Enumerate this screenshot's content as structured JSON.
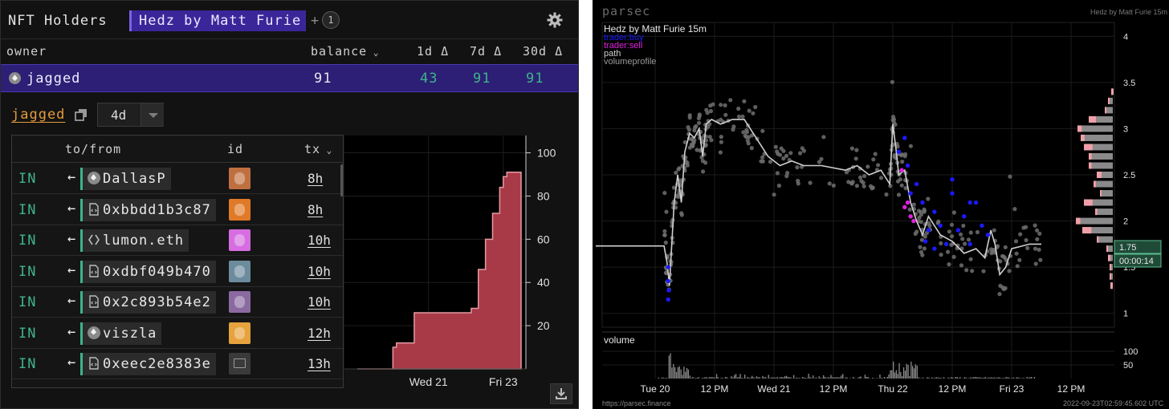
{
  "left": {
    "header": {
      "title": "NFT Holders",
      "collection": "Hedz by Matt Furie",
      "plus": "+",
      "count": "1"
    },
    "columns": {
      "owner": "owner",
      "balance": "balance",
      "d1": "1d Δ",
      "d7": "7d Δ",
      "d30": "30d Δ"
    },
    "selected_owner": {
      "name": "jagged",
      "balance": "91",
      "d1": "43",
      "d7": "91",
      "d30": "91"
    },
    "wallet_link": "jagged",
    "period": "4d",
    "tx_columns": {
      "dir": "to/from",
      "id": "id",
      "tx": "tx"
    },
    "tx_rows": [
      {
        "dir": "IN",
        "party": "DallasP",
        "kind": "eth",
        "time": "8h",
        "thumb": "#c07040"
      },
      {
        "dir": "IN",
        "party": "0xbbdd1b3c87",
        "kind": "contract",
        "time": "8h",
        "thumb": "#e07a28"
      },
      {
        "dir": "IN",
        "party": "lumon.eth",
        "kind": "ens",
        "time": "10h",
        "thumb": "#d66de0"
      },
      {
        "dir": "IN",
        "party": "0xdbf049b470",
        "kind": "contract",
        "time": "10h",
        "thumb": "#6c8c9e"
      },
      {
        "dir": "IN",
        "party": "0x2c893b54e2",
        "kind": "contract",
        "time": "10h",
        "thumb": "#8a6aa0"
      },
      {
        "dir": "IN",
        "party": "viszla",
        "kind": "eth",
        "time": "12h",
        "thumb": "#e6a23c"
      },
      {
        "dir": "IN",
        "party": "0xeec2e8383e",
        "kind": "contract",
        "time": "13h",
        "thumb": "#3a3a3a"
      }
    ],
    "colors": {
      "accent": "#3b2699",
      "in": "#3fb38a",
      "link": "#e49a3c",
      "area": "#a83a48"
    },
    "chart_data": {
      "type": "area",
      "x_labels": [
        "Wed 21",
        "Fri 23"
      ],
      "y_ticks": [
        20,
        40,
        60,
        80,
        100
      ],
      "ylim": [
        0,
        108
      ],
      "series": [
        {
          "values": [
            [
              0,
              0
            ],
            [
              0.5,
              10
            ],
            [
              0.55,
              12
            ],
            [
              0.75,
              12
            ],
            [
              0.8,
              26
            ],
            [
              1.55,
              26
            ],
            [
              1.6,
              28
            ],
            [
              1.7,
              46
            ],
            [
              1.8,
              60
            ],
            [
              1.9,
              72
            ],
            [
              2.0,
              84
            ],
            [
              2.05,
              89
            ],
            [
              2.1,
              91
            ],
            [
              2.3,
              91
            ]
          ]
        }
      ]
    }
  },
  "right": {
    "logo": "parsec",
    "collection_tag": "Hedz by Matt Furie 15m",
    "legend": {
      "title": "Hedz by Matt Furie 15m",
      "buy": "trader:buy",
      "sell": "trader:sell",
      "path": "path",
      "vp": "volumeprofile"
    },
    "price_ticks": [
      "4",
      "3.5",
      "3",
      "2.5",
      "2",
      "1.5",
      "1"
    ],
    "price_tag": "1.75",
    "timer_tag": "00:00:14",
    "x_labels": [
      "Tue 20",
      "12 PM",
      "Wed 21",
      "12 PM",
      "Thu 22",
      "12 PM",
      "Fri 23",
      "12 PM"
    ],
    "volume_label": "volume",
    "volume_ticks": [
      "100",
      "50"
    ],
    "footer_url": "https://parsec.finance",
    "footer_time": "2022-09-23T02:59:45.602 UTC",
    "colors": {
      "buy": "#1a1aff",
      "sell": "#e020e0",
      "path": "#cfcfcf",
      "dots": "#6e6e6e",
      "vp": "#8a8a8a",
      "vp_sell": "#f0a0a8",
      "tag": "#1f4a38"
    }
  }
}
